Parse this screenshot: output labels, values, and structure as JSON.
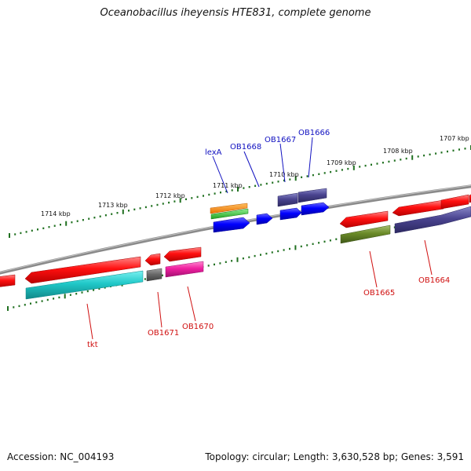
{
  "title": "Oceanobacillus iheyensis HTE831, complete genome",
  "footer": {
    "accession": "Accession: NC_004193",
    "stats": "Topology: circular; Length: 3,630,528 bp; Genes: 3,591"
  },
  "scale_labels": [
    "1714 kbp",
    "1713 kbp",
    "1712 kbp",
    "1711 kbp",
    "1710 kbp",
    "1709 kbp",
    "1708 kbp",
    "1707 kbp"
  ],
  "gene_labels_top": [
    "lexA",
    "OB1668",
    "OB1667",
    "OB1666"
  ],
  "gene_labels_bottom": [
    "tkt",
    "OB1671",
    "OB1670",
    "OB1665",
    "OB1664"
  ],
  "colors": {
    "forward_gene": "#ff1010",
    "reverse_gene": "#0000ff",
    "label_top": "#1010c0",
    "label_bottom": "#d01010",
    "tick": "#207020",
    "backbone": "#8a8a8a"
  }
}
